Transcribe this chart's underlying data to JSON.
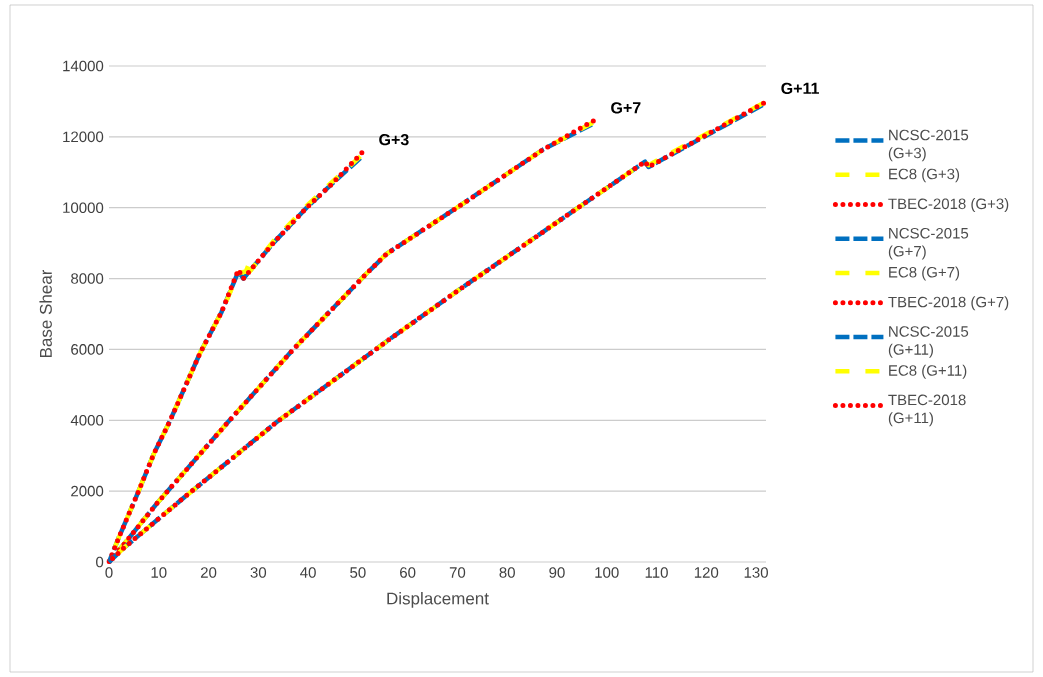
{
  "chart_data": {
    "type": "line",
    "xlabel": "Displacement",
    "ylabel": "Base Shear",
    "xlim": [
      0,
      132
    ],
    "xticks": [
      0,
      10,
      20,
      30,
      40,
      50,
      60,
      70,
      80,
      90,
      100,
      110,
      120,
      130
    ],
    "ylim": [
      0,
      14000
    ],
    "yticks": [
      0,
      2000,
      4000,
      6000,
      8000,
      10000,
      12000,
      14000
    ],
    "grid": "y",
    "legend": "right",
    "marker": "none",
    "annotations": [
      {
        "text": "G+3",
        "x": 50.7,
        "y": 11500
      },
      {
        "text": "G+7",
        "x": 97.3,
        "y": 12400
      },
      {
        "text": "G+11",
        "x": 131.5,
        "y": 12950
      }
    ],
    "series": [
      {
        "name": "NCSC-2015 (G+3)",
        "color": "#0070c0",
        "line_style": "dashed",
        "x": [
          0,
          2,
          5.5,
          9,
          12.3,
          18.3,
          22.6,
          26,
          27,
          33,
          39.7,
          45,
          50.5
        ],
        "values": [
          0,
          700,
          1850,
          3050,
          4000,
          5900,
          7050,
          8200,
          8000,
          9000,
          10000,
          10700,
          11400
        ]
      },
      {
        "name": "EC8 (G+3)",
        "color": "#ffff00",
        "line_style": "longdash",
        "x": [
          0,
          2,
          5.5,
          9,
          12.3,
          18.3,
          22.6,
          26,
          27.5,
          28.5,
          28.3,
          33,
          39.7,
          45,
          50.5
        ],
        "values": [
          0,
          700,
          1850,
          3050,
          4000,
          5900,
          7050,
          8150,
          8200,
          8550,
          8200,
          9050,
          10050,
          10750,
          11450
        ]
      },
      {
        "name": "TBEC-2018 (G+3)",
        "color": "#ff0000",
        "line_style": "dotted",
        "x": [
          0,
          2,
          5.5,
          9,
          12.3,
          18.3,
          22.6,
          26,
          27,
          33,
          39.7,
          45,
          50.8
        ],
        "values": [
          0,
          700,
          1850,
          3050,
          4000,
          5900,
          7050,
          8250,
          8000,
          9000,
          10000,
          10700,
          11550
        ]
      },
      {
        "name": "NCSC-2015 (G+7)",
        "color": "#0070c0",
        "line_style": "dashed",
        "x": [
          0,
          3,
          9.6,
          23.6,
          37,
          51.8,
          55.8,
          69.9,
          87.3,
          97
        ],
        "values": [
          0,
          500,
          1650,
          3900,
          6000,
          8150,
          8700,
          10000,
          11650,
          12350
        ]
      },
      {
        "name": "EC8 (G+7)",
        "color": "#ffff00",
        "line_style": "longdash",
        "x": [
          0,
          3,
          9.6,
          23.6,
          37,
          51.8,
          55.8,
          69.9,
          87.3,
          97.2
        ],
        "values": [
          0,
          500,
          1650,
          3900,
          6000,
          8150,
          8700,
          10000,
          11650,
          12400
        ]
      },
      {
        "name": "TBEC-2018 (G+7)",
        "color": "#ff0000",
        "line_style": "dotted",
        "x": [
          0,
          3,
          9.6,
          23.6,
          37,
          51.8,
          55.8,
          69.9,
          87.3,
          97.3
        ],
        "values": [
          0,
          500,
          1650,
          3900,
          6000,
          8150,
          8700,
          10000,
          11650,
          12450
        ]
      },
      {
        "name": "NCSC-2015 (G+11)",
        "color": "#0070c0",
        "line_style": "dashed",
        "x": [
          0,
          3,
          14.9,
          33.7,
          56.5,
          70.5,
          95.3,
          107.7,
          108.4,
          131.3
        ],
        "values": [
          0,
          400,
          1800,
          3950,
          6300,
          7700,
          10100,
          11300,
          11150,
          12900
        ]
      },
      {
        "name": "EC8 (G+11)",
        "color": "#ffff00",
        "line_style": "longdash",
        "x": [
          0,
          3,
          14.9,
          33.7,
          56.5,
          70.5,
          95.3,
          107.7,
          108.4,
          131.4
        ],
        "values": [
          0,
          400,
          1800,
          3950,
          6300,
          7700,
          10100,
          11300,
          11200,
          12950
        ]
      },
      {
        "name": "TBEC-2018 (G+11)",
        "color": "#ff0000",
        "line_style": "dotted",
        "x": [
          0,
          3,
          14.9,
          33.7,
          56.5,
          70.5,
          95.3,
          107.7,
          108.4,
          131.5
        ],
        "values": [
          0,
          400,
          1800,
          3950,
          6300,
          7700,
          10100,
          11300,
          11150,
          12950
        ]
      }
    ]
  }
}
